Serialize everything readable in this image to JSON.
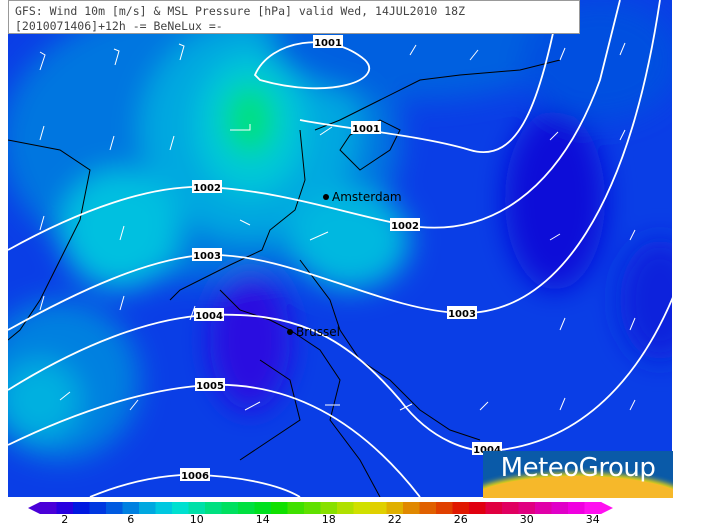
{
  "title": {
    "line1": "GFS: Wind 10m [m/s] & MSL Pressure [hPa] valid Wed, 14JUL2010 18Z",
    "line2": "[2010071406]+12h -= BeNeLux =-"
  },
  "cities": [
    {
      "name": "Amsterdam"
    },
    {
      "name": "Brussel"
    }
  ],
  "isobars": [
    {
      "label": "1001"
    },
    {
      "label": "1001"
    },
    {
      "label": "1002"
    },
    {
      "label": "1002"
    },
    {
      "label": "1003"
    },
    {
      "label": "1003"
    },
    {
      "label": "1004"
    },
    {
      "label": "1004"
    },
    {
      "label": "1005"
    },
    {
      "label": "1006"
    }
  ],
  "colorbar": {
    "unit": "m/s",
    "ticks": [
      "2",
      "6",
      "10",
      "14",
      "18",
      "22",
      "26",
      "30",
      "34"
    ],
    "colors": [
      "#4a00d8",
      "#2800e0",
      "#0018e0",
      "#0038e0",
      "#005ae0",
      "#0080e0",
      "#00a8e0",
      "#00c8e0",
      "#00e0d0",
      "#00e0a8",
      "#00e080",
      "#00e060",
      "#00e040",
      "#00e020",
      "#10e000",
      "#40e000",
      "#60e000",
      "#88e000",
      "#b0e000",
      "#d0e000",
      "#e0d000",
      "#e0b000",
      "#e08800",
      "#e06000",
      "#e04000",
      "#e01800",
      "#e00010",
      "#e00040",
      "#e00060",
      "#e00080",
      "#e000a8",
      "#e000c8",
      "#f000e0",
      "#ff10f0"
    ]
  },
  "logo": {
    "text": "MeteoGroup"
  },
  "colors": {
    "background": "#0a3ee6",
    "isobar": "#ffffff",
    "coast": "#000000"
  }
}
